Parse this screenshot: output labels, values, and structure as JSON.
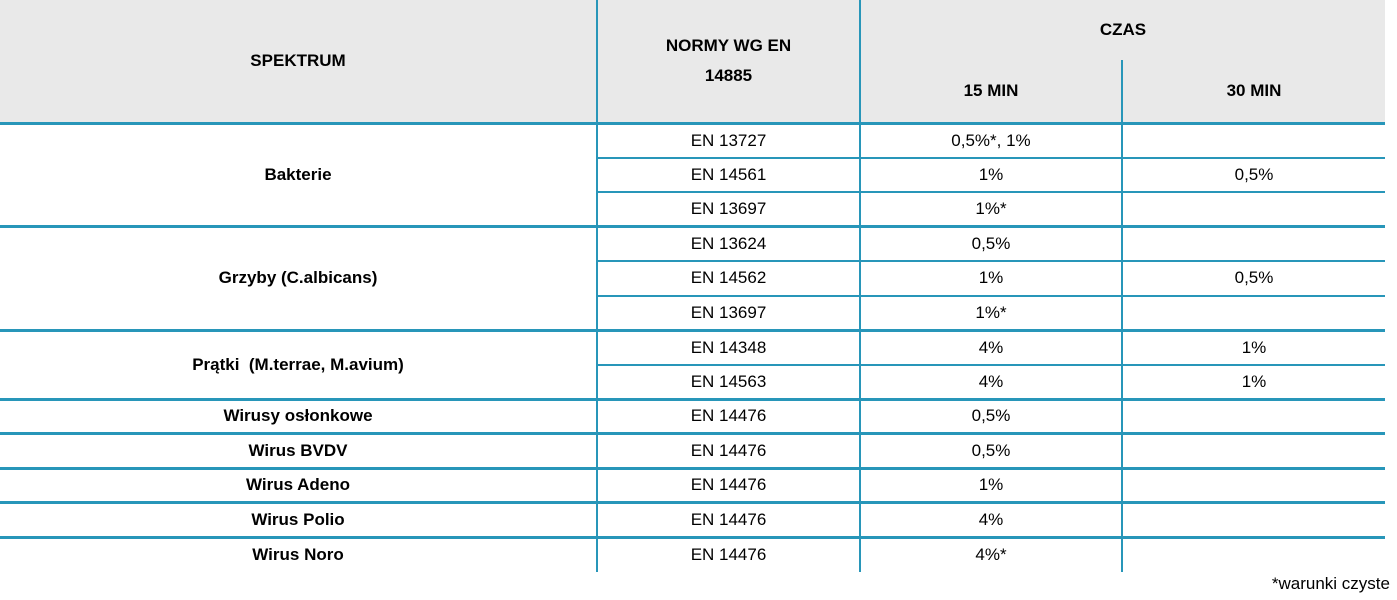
{
  "colors": {
    "border_teal": "#2896B9",
    "header_background": "#E9E9E9",
    "text": "#000000"
  },
  "table": {
    "headers": {
      "spektrum": "SPEKTRUM",
      "normy": "NORMY WG EN 14885",
      "czas": "CZAS",
      "min15": "15 MIN",
      "min30": "30 MIN"
    },
    "groups": [
      {
        "name": "Bakterie",
        "rows": [
          {
            "norm": "EN 13727",
            "min15": "0,5%*, 1%",
            "min30": ""
          },
          {
            "norm": "EN 14561",
            "min15": "1%",
            "min30": "0,5%"
          },
          {
            "norm": "EN 13697",
            "min15": "1%*",
            "min30": ""
          }
        ]
      },
      {
        "name": "Grzyby (C.albicans)",
        "rows": [
          {
            "norm": "EN 13624",
            "min15": "0,5%",
            "min30": ""
          },
          {
            "norm": "EN 14562",
            "min15": "1%",
            "min30": "0,5%"
          },
          {
            "norm": "EN 13697",
            "min15": "1%*",
            "min30": ""
          }
        ]
      },
      {
        "name": "Prątki  (M.terrae, M.avium)",
        "rows": [
          {
            "norm": "EN 14348",
            "min15": "4%",
            "min30": "1%"
          },
          {
            "norm": "EN 14563",
            "min15": "4%",
            "min30": "1%"
          }
        ]
      },
      {
        "name": "Wirusy osłonkowe",
        "rows": [
          {
            "norm": "EN 14476",
            "min15": "0,5%",
            "min30": ""
          }
        ]
      },
      {
        "name": "Wirus BVDV",
        "rows": [
          {
            "norm": "EN 14476",
            "min15": "0,5%",
            "min30": ""
          }
        ]
      },
      {
        "name": "Wirus Adeno",
        "rows": [
          {
            "norm": "EN 14476",
            "min15": "1%",
            "min30": ""
          }
        ]
      },
      {
        "name": "Wirus Polio",
        "rows": [
          {
            "norm": "EN 14476",
            "min15": "4%",
            "min30": ""
          }
        ]
      },
      {
        "name": "Wirus Noro",
        "rows": [
          {
            "norm": "EN 14476",
            "min15": "4%*",
            "min30": ""
          }
        ]
      }
    ],
    "footnote": "*warunki czyste"
  }
}
